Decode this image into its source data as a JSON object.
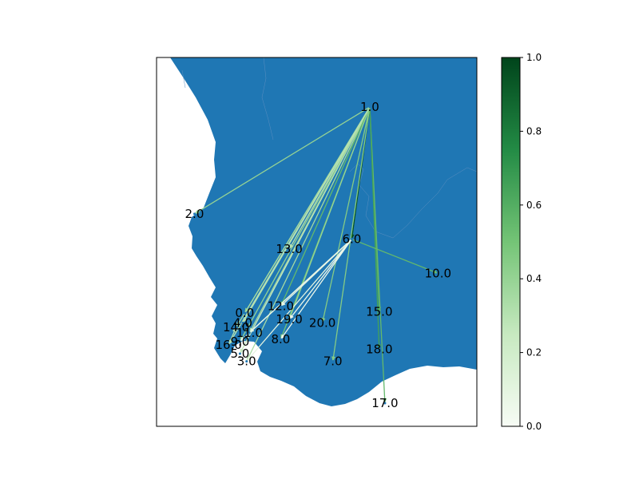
{
  "chart_data": {
    "type": "network-map",
    "map": {
      "land_color": "#1f77b4",
      "background_color": "#ffffff"
    },
    "nodes": [
      {
        "label": "0.0",
        "lon": 18.48,
        "lat": -33.92
      },
      {
        "label": "1.0",
        "lon": 19.8,
        "lat": -32.05
      },
      {
        "label": "2.0",
        "lon": 17.95,
        "lat": -33.02
      },
      {
        "label": "3.0",
        "lon": 18.5,
        "lat": -34.36
      },
      {
        "label": "4.0",
        "lon": 18.46,
        "lat": -34.01
      },
      {
        "label": "5.0",
        "lon": 18.43,
        "lat": -34.29
      },
      {
        "label": "6.0",
        "lon": 19.61,
        "lat": -33.25
      },
      {
        "label": "7.0",
        "lon": 19.41,
        "lat": -34.36
      },
      {
        "label": "8.0",
        "lon": 18.86,
        "lat": -34.16
      },
      {
        "label": "9.0",
        "lon": 18.43,
        "lat": -34.18
      },
      {
        "label": "10.0",
        "lon": 20.52,
        "lat": -33.56
      },
      {
        "label": "11.0",
        "lon": 18.53,
        "lat": -34.1
      },
      {
        "label": "12.0",
        "lon": 18.86,
        "lat": -33.86
      },
      {
        "label": "13.0",
        "lon": 18.95,
        "lat": -33.34
      },
      {
        "label": "14.0",
        "lon": 18.39,
        "lat": -34.05
      },
      {
        "label": "15.0",
        "lon": 19.9,
        "lat": -33.91
      },
      {
        "label": "16.0",
        "lon": 18.31,
        "lat": -34.21
      },
      {
        "label": "17.0",
        "lon": 19.96,
        "lat": -34.74
      },
      {
        "label": "18.0",
        "lon": 19.9,
        "lat": -34.25
      },
      {
        "label": "19.0",
        "lon": 18.95,
        "lat": -33.98
      },
      {
        "label": "20.0",
        "lon": 19.3,
        "lat": -34.01
      }
    ],
    "edges": [
      {
        "from": "1.0",
        "to": "0.0",
        "value": 0.42
      },
      {
        "from": "1.0",
        "to": "2.0",
        "value": 0.4
      },
      {
        "from": "1.0",
        "to": "3.0",
        "value": 0.35
      },
      {
        "from": "1.0",
        "to": "4.0",
        "value": 0.3
      },
      {
        "from": "1.0",
        "to": "5.0",
        "value": 0.25
      },
      {
        "from": "1.0",
        "to": "6.0",
        "value": 0.95
      },
      {
        "from": "1.0",
        "to": "7.0",
        "value": 0.45
      },
      {
        "from": "1.0",
        "to": "8.0",
        "value": 0.5
      },
      {
        "from": "1.0",
        "to": "9.0",
        "value": 0.4
      },
      {
        "from": "1.0",
        "to": "11.0",
        "value": 0.35
      },
      {
        "from": "1.0",
        "to": "12.0",
        "value": 0.55
      },
      {
        "from": "1.0",
        "to": "13.0",
        "value": 0.3
      },
      {
        "from": "1.0",
        "to": "14.0",
        "value": 0.35
      },
      {
        "from": "1.0",
        "to": "15.0",
        "value": 0.6
      },
      {
        "from": "1.0",
        "to": "16.0",
        "value": 0.3
      },
      {
        "from": "1.0",
        "to": "17.0",
        "value": 0.55
      },
      {
        "from": "1.0",
        "to": "18.0",
        "value": 0.65
      },
      {
        "from": "1.0",
        "to": "19.0",
        "value": 0.4
      },
      {
        "from": "1.0",
        "to": "20.0",
        "value": 0.45
      },
      {
        "from": "6.0",
        "to": "10.0",
        "value": 0.55
      },
      {
        "from": "6.0",
        "to": "8.0",
        "value": 0.05
      },
      {
        "from": "6.0",
        "to": "9.0",
        "value": 0.05
      },
      {
        "from": "6.0",
        "to": "3.0",
        "value": 0.1
      },
      {
        "from": "6.0",
        "to": "11.0",
        "value": 0.08
      },
      {
        "from": "6.0",
        "to": "19.0",
        "value": 0.05
      },
      {
        "from": "6.0",
        "to": "12.0",
        "value": 0.08
      },
      {
        "from": "16.0",
        "to": "14.0",
        "value": 0.3
      }
    ],
    "colorbar": {
      "colormap": "Greens",
      "range": [
        0.0,
        1.0
      ],
      "ticks": [
        "0.0",
        "0.2",
        "0.4",
        "0.6",
        "0.8",
        "1.0"
      ],
      "colors": [
        "#f7fcf5",
        "#c7e9c0",
        "#74c476",
        "#238b45",
        "#00441b"
      ]
    }
  }
}
